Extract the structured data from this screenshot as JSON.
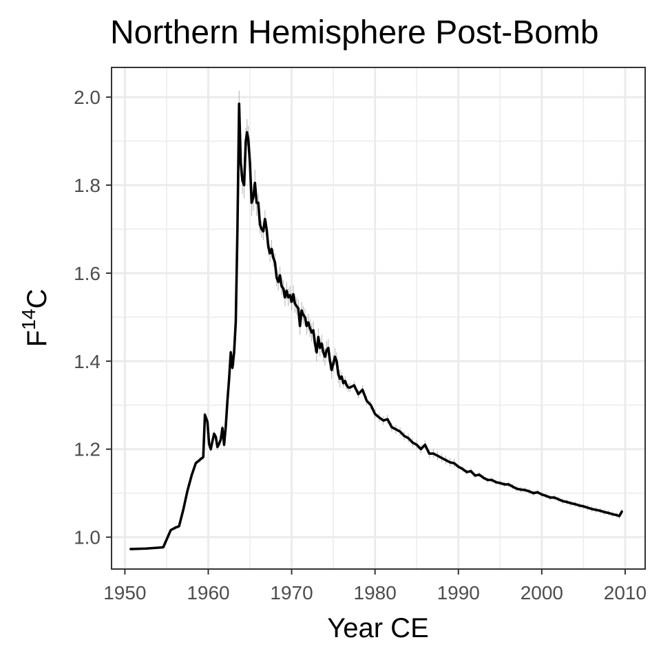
{
  "chart_data": {
    "type": "line",
    "title": "Northern Hemisphere Post-Bomb",
    "xlabel": "Year CE",
    "ylabel": {
      "base": "F",
      "superscript": "14",
      "suffix": "C"
    },
    "xlim": [
      1948.4,
      2012.4
    ],
    "ylim": [
      0.9275,
      2.0675
    ],
    "x_major_ticks": [
      1950,
      1960,
      1970,
      1980,
      1990,
      2000,
      2010
    ],
    "x_tick_labels": [
      "1950",
      "1960",
      "1970",
      "1980",
      "1990",
      "2000",
      "2010"
    ],
    "x_minor_ticks": [
      1955,
      1965,
      1975,
      1985,
      1995,
      2005
    ],
    "y_major_ticks": [
      1.0,
      1.2,
      1.4,
      1.6,
      1.8,
      2.0
    ],
    "y_tick_labels": [
      "1.0",
      "1.2",
      "1.4",
      "1.6",
      "1.8",
      "2.0"
    ],
    "y_minor_ticks": [
      1.1,
      1.3,
      1.5,
      1.7,
      1.9
    ],
    "grid": true,
    "colors": {
      "line": "#000000",
      "uncertainty": "#9e9e9e",
      "grid": "#ebebeb",
      "panel_border": "#333333"
    },
    "series": [
      {
        "values": [
          [
            1950.7,
            0.973
          ],
          [
            1952.5,
            0.974
          ],
          [
            1954.0,
            0.976
          ],
          [
            1954.6,
            0.977
          ],
          [
            1955.5,
            1.016
          ],
          [
            1956.0,
            1.021
          ],
          [
            1956.5,
            1.025
          ],
          [
            1957.0,
            1.062
          ],
          [
            1957.5,
            1.105
          ],
          [
            1958.0,
            1.14
          ],
          [
            1958.5,
            1.168
          ],
          [
            1959.0,
            1.176
          ],
          [
            1959.4,
            1.182
          ],
          [
            1959.6,
            1.278
          ],
          [
            1959.9,
            1.262
          ],
          [
            1960.1,
            1.212
          ],
          [
            1960.3,
            1.2
          ],
          [
            1960.5,
            1.218
          ],
          [
            1960.7,
            1.235
          ],
          [
            1960.9,
            1.228
          ],
          [
            1961.1,
            1.205
          ],
          [
            1961.3,
            1.212
          ],
          [
            1961.5,
            1.222
          ],
          [
            1961.7,
            1.248
          ],
          [
            1961.9,
            1.21
          ],
          [
            1962.1,
            1.252
          ],
          [
            1962.3,
            1.31
          ],
          [
            1962.5,
            1.36
          ],
          [
            1962.7,
            1.42
          ],
          [
            1962.9,
            1.385
          ],
          [
            1963.1,
            1.42
          ],
          [
            1963.3,
            1.49
          ],
          [
            1963.5,
            1.7
          ],
          [
            1963.7,
            1.985
          ],
          [
            1963.9,
            1.85
          ],
          [
            1964.1,
            1.81
          ],
          [
            1964.3,
            1.8
          ],
          [
            1964.5,
            1.9
          ],
          [
            1964.65,
            1.92
          ],
          [
            1964.8,
            1.905
          ],
          [
            1965.0,
            1.85
          ],
          [
            1965.2,
            1.76
          ],
          [
            1965.4,
            1.772
          ],
          [
            1965.6,
            1.805
          ],
          [
            1965.8,
            1.76
          ],
          [
            1966.0,
            1.76
          ],
          [
            1966.2,
            1.71
          ],
          [
            1966.4,
            1.7
          ],
          [
            1966.6,
            1.695
          ],
          [
            1966.8,
            1.723
          ],
          [
            1967.0,
            1.7
          ],
          [
            1967.2,
            1.66
          ],
          [
            1967.4,
            1.645
          ],
          [
            1967.6,
            1.655
          ],
          [
            1967.8,
            1.635
          ],
          [
            1968.0,
            1.625
          ],
          [
            1968.2,
            1.59
          ],
          [
            1968.4,
            1.58
          ],
          [
            1968.6,
            1.595
          ],
          [
            1968.8,
            1.57
          ],
          [
            1969.0,
            1.565
          ],
          [
            1969.2,
            1.545
          ],
          [
            1969.4,
            1.56
          ],
          [
            1969.6,
            1.545
          ],
          [
            1969.8,
            1.55
          ],
          [
            1970.0,
            1.535
          ],
          [
            1970.2,
            1.552
          ],
          [
            1970.4,
            1.53
          ],
          [
            1970.6,
            1.525
          ],
          [
            1970.8,
            1.52
          ],
          [
            1971.0,
            1.48
          ],
          [
            1971.2,
            1.515
          ],
          [
            1971.4,
            1.505
          ],
          [
            1971.6,
            1.5
          ],
          [
            1971.8,
            1.48
          ],
          [
            1972.0,
            1.488
          ],
          [
            1972.2,
            1.475
          ],
          [
            1972.4,
            1.465
          ],
          [
            1972.6,
            1.47
          ],
          [
            1972.8,
            1.44
          ],
          [
            1973.0,
            1.42
          ],
          [
            1973.2,
            1.455
          ],
          [
            1973.4,
            1.43
          ],
          [
            1973.6,
            1.44
          ],
          [
            1973.8,
            1.42
          ],
          [
            1974.0,
            1.41
          ],
          [
            1974.2,
            1.425
          ],
          [
            1974.4,
            1.43
          ],
          [
            1974.6,
            1.4
          ],
          [
            1974.8,
            1.38
          ],
          [
            1975.0,
            1.395
          ],
          [
            1975.2,
            1.41
          ],
          [
            1975.4,
            1.4
          ],
          [
            1975.6,
            1.37
          ],
          [
            1975.8,
            1.36
          ],
          [
            1976.0,
            1.365
          ],
          [
            1976.2,
            1.35
          ],
          [
            1976.4,
            1.355
          ],
          [
            1976.6,
            1.345
          ],
          [
            1976.8,
            1.34
          ],
          [
            1977.0,
            1.34
          ],
          [
            1977.5,
            1.345
          ],
          [
            1978.0,
            1.325
          ],
          [
            1978.5,
            1.335
          ],
          [
            1979.0,
            1.31
          ],
          [
            1979.5,
            1.3
          ],
          [
            1980.0,
            1.28
          ],
          [
            1980.5,
            1.272
          ],
          [
            1981.0,
            1.265
          ],
          [
            1981.5,
            1.268
          ],
          [
            1982.0,
            1.25
          ],
          [
            1982.5,
            1.245
          ],
          [
            1983.0,
            1.24
          ],
          [
            1983.5,
            1.23
          ],
          [
            1984.0,
            1.225
          ],
          [
            1984.5,
            1.215
          ],
          [
            1985.0,
            1.21
          ],
          [
            1985.5,
            1.2
          ],
          [
            1986.0,
            1.21
          ],
          [
            1986.5,
            1.19
          ],
          [
            1987.0,
            1.19
          ],
          [
            1987.5,
            1.185
          ],
          [
            1988.0,
            1.18
          ],
          [
            1988.5,
            1.175
          ],
          [
            1989.0,
            1.17
          ],
          [
            1989.5,
            1.168
          ],
          [
            1990.0,
            1.16
          ],
          [
            1990.5,
            1.155
          ],
          [
            1991.0,
            1.148
          ],
          [
            1991.5,
            1.15
          ],
          [
            1992.0,
            1.14
          ],
          [
            1992.5,
            1.142
          ],
          [
            1993.0,
            1.135
          ],
          [
            1993.5,
            1.13
          ],
          [
            1994.0,
            1.13
          ],
          [
            1994.5,
            1.125
          ],
          [
            1995.0,
            1.123
          ],
          [
            1995.5,
            1.12
          ],
          [
            1996.0,
            1.12
          ],
          [
            1996.5,
            1.115
          ],
          [
            1997.0,
            1.11
          ],
          [
            1997.5,
            1.108
          ],
          [
            1998.0,
            1.107
          ],
          [
            1998.5,
            1.104
          ],
          [
            1999.0,
            1.1
          ],
          [
            1999.5,
            1.102
          ],
          [
            2000.0,
            1.097
          ],
          [
            2000.5,
            1.094
          ],
          [
            2001.0,
            1.09
          ],
          [
            2001.5,
            1.09
          ],
          [
            2002.0,
            1.086
          ],
          [
            2002.5,
            1.082
          ],
          [
            2003.0,
            1.08
          ],
          [
            2003.5,
            1.077
          ],
          [
            2004.0,
            1.075
          ],
          [
            2004.5,
            1.072
          ],
          [
            2005.0,
            1.07
          ],
          [
            2005.5,
            1.067
          ],
          [
            2006.0,
            1.064
          ],
          [
            2006.5,
            1.062
          ],
          [
            2007.0,
            1.06
          ],
          [
            2007.5,
            1.057
          ],
          [
            2008.0,
            1.055
          ],
          [
            2008.5,
            1.052
          ],
          [
            2009.0,
            1.05
          ],
          [
            2009.3,
            1.048
          ],
          [
            2009.6,
            1.058
          ]
        ]
      }
    ]
  }
}
